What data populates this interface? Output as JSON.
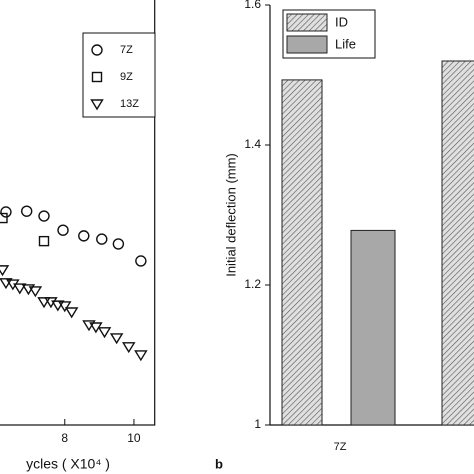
{
  "chart_data": [
    {
      "type": "scatter",
      "xlabel": "ycles ( X10⁴ )",
      "xlim": [
        0,
        10.6
      ],
      "xticks": [
        8,
        10
      ],
      "ylim": [
        0,
        100
      ],
      "series": [
        {
          "name": "7Z",
          "marker": "circle",
          "x": [
            6.3,
            6.9,
            7.4,
            7.95,
            8.55,
            9.07,
            9.55,
            10.2
          ],
          "y": [
            52.6,
            52.8,
            51.6,
            48.1,
            46.7,
            45.9,
            44.7,
            40.5
          ]
        },
        {
          "name": "9Z",
          "marker": "square",
          "x": [
            6.2,
            7.4
          ],
          "y": [
            51.1,
            45.4
          ]
        },
        {
          "name": "13Z",
          "marker": "triangle",
          "x": [
            6.2,
            6.3,
            6.5,
            6.7,
            6.95,
            7.15,
            7.4,
            7.6,
            7.8,
            8.0,
            8.2,
            8.7,
            8.9,
            9.15,
            9.5,
            9.85,
            10.2
          ],
          "y": [
            38.3,
            35.1,
            34.8,
            33.8,
            33.6,
            33.1,
            30.4,
            30.4,
            29.6,
            29.4,
            27.9,
            24.7,
            24.2,
            23.0,
            21.5,
            19.3,
            17.3
          ]
        }
      ]
    },
    {
      "type": "bar",
      "panel": "b",
      "ylabel": "Initial deflection (mm)",
      "categories": [
        "7Z",
        null
      ],
      "ylim": [
        1,
        1.6
      ],
      "yticks": [
        {
          "value": 1,
          "label": "1"
        },
        1.2,
        1.4,
        1.6
      ],
      "series": [
        {
          "name": "ID",
          "color": "#cfcfcf",
          "pattern": "hatch",
          "values": [
            1.493,
            1.52
          ]
        },
        {
          "name": "Life",
          "color": "#a8a8a8",
          "values": [
            1.278,
            null
          ]
        }
      ]
    }
  ]
}
